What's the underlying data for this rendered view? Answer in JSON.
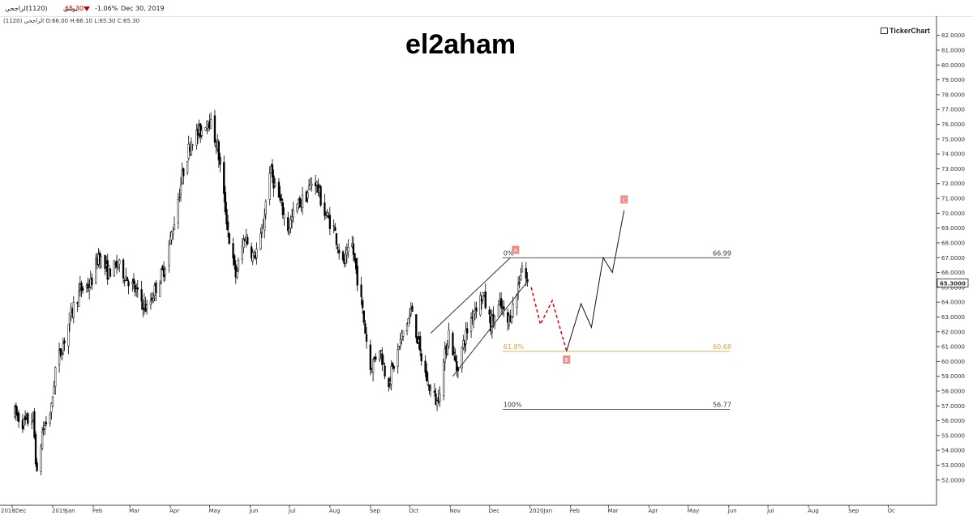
{
  "header": {
    "symbol": "الراجحي",
    "code": "(1120)",
    "period": "يومي",
    "price": "65.30",
    "change": "-1.06%",
    "date": "Dec 30, 2019",
    "ohlc": "الراجحي (1120)  O:66.00  H:66.10  L:65.30  C:65.30",
    "down_color": "#c00000"
  },
  "title": "el2aham",
  "brand": "TickerChart",
  "chart_data": {
    "type": "candlestick",
    "title": "el2aham",
    "ylim": [
      51.6,
      82.6
    ],
    "y_ticks": [
      "52.0000",
      "53.0000",
      "54.0000",
      "55.0000",
      "56.0000",
      "57.0000",
      "58.0000",
      "59.0000",
      "60.0000",
      "61.0000",
      "62.0000",
      "63.0000",
      "64.0000",
      "65.0000",
      "66.0000",
      "67.0000",
      "68.0000",
      "69.0000",
      "70.0000",
      "71.0000",
      "72.0000",
      "73.0000",
      "74.0000",
      "75.0000",
      "76.0000",
      "77.0000",
      "78.0000",
      "79.0000",
      "80.0000",
      "81.0000",
      "82.0000"
    ],
    "x_ticks": [
      "2018Dec",
      "2019Jan",
      "Feb",
      "Mar",
      "Apr",
      "May",
      "Jun",
      "Jul",
      "Aug",
      "Sep",
      "Oct",
      "Nov",
      "Dec",
      "2020Jan",
      "Feb",
      "Mar",
      "Apr",
      "May",
      "Jun",
      "Jul",
      "Aug",
      "Sep",
      "Oc"
    ],
    "last_price_label": "65.3000",
    "price_path": [
      [
        "2018-12-03",
        56.5
      ],
      [
        "2018-12-10",
        55.8
      ],
      [
        "2018-12-17",
        56.2
      ],
      [
        "2018-12-20",
        52.2
      ],
      [
        "2018-12-24",
        55.2
      ],
      [
        "2018-12-31",
        56.8
      ],
      [
        "2019-01-03",
        59.5
      ],
      [
        "2019-01-10",
        61.5
      ],
      [
        "2019-01-16",
        63.5
      ],
      [
        "2019-01-22",
        64.8
      ],
      [
        "2019-01-30",
        65.2
      ],
      [
        "2019-02-05",
        67.2
      ],
      [
        "2019-02-12",
        66.0
      ],
      [
        "2019-02-20",
        66.5
      ],
      [
        "2019-02-28",
        65.5
      ],
      [
        "2019-03-07",
        64.5
      ],
      [
        "2019-03-14",
        63.5
      ],
      [
        "2019-03-20",
        64.8
      ],
      [
        "2019-03-27",
        66.2
      ],
      [
        "2019-04-03",
        69.0
      ],
      [
        "2019-04-10",
        72.5
      ],
      [
        "2019-04-17",
        75.0
      ],
      [
        "2019-04-24",
        75.5
      ],
      [
        "2019-04-30",
        76.5
      ],
      [
        "2019-05-07",
        74.5
      ],
      [
        "2019-05-12",
        71.0
      ],
      [
        "2019-05-17",
        67.5
      ],
      [
        "2019-05-21",
        65.8
      ],
      [
        "2019-05-28",
        68.5
      ],
      [
        "2019-06-04",
        67.0
      ],
      [
        "2019-06-10",
        68.5
      ],
      [
        "2019-06-16",
        73.0
      ],
      [
        "2019-06-23",
        71.0
      ],
      [
        "2019-06-30",
        69.0
      ],
      [
        "2019-07-07",
        70.5
      ],
      [
        "2019-07-14",
        71.2
      ],
      [
        "2019-07-20",
        72.5
      ],
      [
        "2019-07-28",
        70.0
      ],
      [
        "2019-08-04",
        69.0
      ],
      [
        "2019-08-11",
        66.5
      ],
      [
        "2019-08-18",
        67.8
      ],
      [
        "2019-08-25",
        64.0
      ],
      [
        "2019-09-01",
        59.5
      ],
      [
        "2019-09-08",
        61.0
      ],
      [
        "2019-09-14",
        58.5
      ],
      [
        "2019-09-20",
        60.0
      ],
      [
        "2019-09-26",
        62.0
      ],
      [
        "2019-10-03",
        63.5
      ],
      [
        "2019-10-09",
        60.5
      ],
      [
        "2019-10-15",
        58.5
      ],
      [
        "2019-10-22",
        57.2
      ],
      [
        "2019-10-25",
        58.8
      ],
      [
        "2019-10-31",
        62.0
      ],
      [
        "2019-11-06",
        59.5
      ],
      [
        "2019-11-12",
        61.5
      ],
      [
        "2019-11-19",
        63.5
      ],
      [
        "2019-11-26",
        64.5
      ],
      [
        "2019-12-02",
        62.5
      ],
      [
        "2019-12-09",
        63.8
      ],
      [
        "2019-12-15",
        62.6
      ],
      [
        "2019-12-21",
        64.2
      ],
      [
        "2019-12-26",
        66.5
      ],
      [
        "2019-12-30",
        65.3
      ]
    ],
    "fibonacci": {
      "color": "#d9a63a",
      "levels": [
        {
          "label": "0%",
          "value": "66.99"
        },
        {
          "label": "61.8%",
          "value": "60.68"
        },
        {
          "label": "100%",
          "value": "56.77"
        }
      ]
    },
    "channel": [
      {
        "start": [
          "2019-10-17",
          61.9
        ],
        "end": [
          "2019-12-17",
          67.0
        ]
      },
      {
        "start": [
          "2019-11-03",
          59.0
        ],
        "end": [
          "2019-12-31",
          65.5
        ]
      }
    ],
    "projection": {
      "color": "#e00000",
      "points": [
        [
          "2020-01-02",
          65.0
        ],
        [
          "2020-01-09",
          62.5
        ],
        [
          "2020-01-18",
          64.1
        ],
        [
          "2020-01-29",
          60.7
        ]
      ]
    },
    "scenario": {
      "points": [
        [
          "2020-01-29",
          60.7
        ],
        [
          "2020-02-09",
          63.9
        ],
        [
          "2020-02-17",
          62.3
        ],
        [
          "2020-02-26",
          67.0
        ],
        [
          "2020-03-04",
          66.0
        ],
        [
          "2020-03-13",
          70.2
        ]
      ]
    },
    "wave_labels": [
      {
        "text": "A",
        "at": [
          "2019-12-21",
          67.5
        ]
      },
      {
        "text": "B",
        "at": [
          "2020-01-29",
          60.1
        ]
      },
      {
        "text": "C",
        "at": [
          "2020-03-13",
          70.9
        ]
      }
    ]
  }
}
